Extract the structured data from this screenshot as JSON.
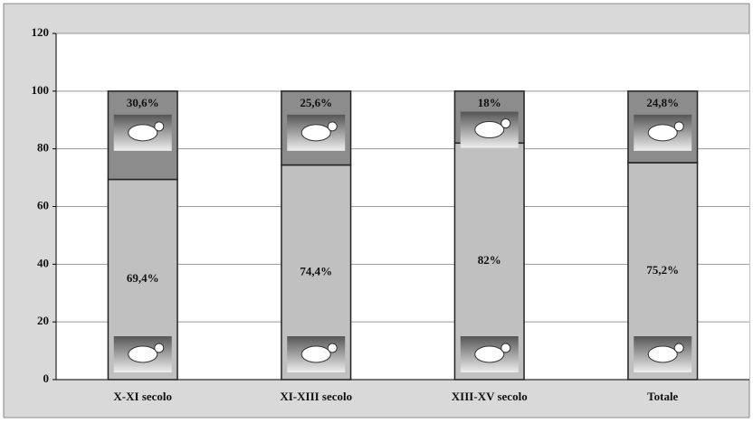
{
  "chart_data": {
    "type": "stacked-bar",
    "categories": [
      "X-XI secolo",
      "XI-XIII secolo",
      "XIII-XV secolo",
      "Totale"
    ],
    "series": [
      {
        "color": "#c0c0c0",
        "values": [
          69.4,
          74.4,
          82,
          75.2
        ],
        "value_labels": [
          "69,4%",
          "74,4%",
          "82%",
          "75,2%"
        ]
      },
      {
        "color": "#8c8c8c",
        "values": [
          30.6,
          25.6,
          18,
          24.8
        ],
        "value_labels": [
          "30,6%",
          "25,6%",
          "18%",
          "24,8%"
        ]
      }
    ],
    "ylim": [
      0,
      120
    ],
    "yticks": [
      0,
      20,
      40,
      60,
      80,
      100,
      120
    ],
    "grid": true
  }
}
